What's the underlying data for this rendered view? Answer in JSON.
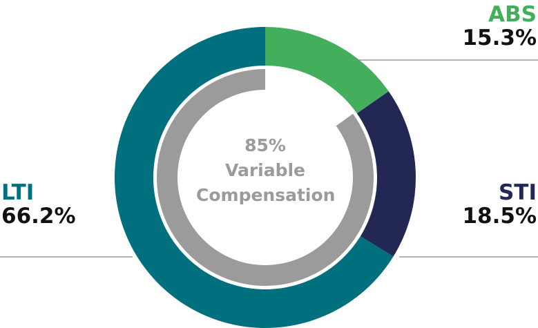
{
  "chart_data": {
    "type": "pie",
    "variant": "donut",
    "series": [
      {
        "label": "ABS",
        "value": 15.3,
        "value_label": "15.3%",
        "color": "#43ae5c"
      },
      {
        "label": "STI",
        "value": 18.5,
        "value_label": "18.5%",
        "color": "#232754"
      },
      {
        "label": "LTI",
        "value": 66.2,
        "value_label": "66.2%",
        "color": "#006f7e"
      }
    ],
    "inner_ring": {
      "value": 85,
      "color": "#9b9b9b"
    },
    "center_text": {
      "line1": "85%",
      "line2": "Variable",
      "line3": "Compensation"
    }
  }
}
